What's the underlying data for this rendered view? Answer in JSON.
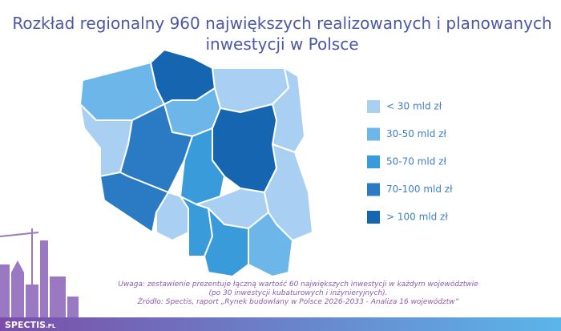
{
  "header": {
    "title": [
      "Rozkład regionalny 960 największych realizowanych i planowanych",
      "inwestycji w Polsce"
    ]
  },
  "legend": [
    {
      "label": "< 30 mld zł",
      "color": "#a9d0f2"
    },
    {
      "label": "30-50 mld zł",
      "color": "#6cb6ea"
    },
    {
      "label": "50-70 mld zł",
      "color": "#3a9bdb"
    },
    {
      "label": "70-100 mld zł",
      "color": "#2a7bc4"
    },
    {
      "label": "> 100 mld zł",
      "color": "#1565b0"
    }
  ],
  "notes": [
    "Uwaga: zestawienie prezentuje łączną wartość 60 największych inwestycji w każdym województwie",
    "(po 30 inwestycji kubaturowych i inżynieryjnych).",
    "Źródło: Spectis, raport „Rynek budowlany w Polsce 2026-2033 - Analiza 16 województw”"
  ],
  "brand": {
    "name": "SPECTIS",
    "suffix": ".PL"
  }
}
